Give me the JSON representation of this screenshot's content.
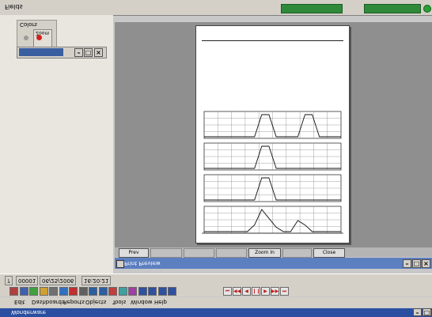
{
  "top_title": "Fields",
  "palette": {
    "title": "Colors",
    "label": "Zoom"
  },
  "mini_window": {
    "title": ""
  },
  "page_buttons": [
    "Prev",
    "",
    "",
    "",
    "Zoom In",
    "",
    "Close"
  ],
  "preview_window": {
    "title": "Print Preview"
  },
  "status": {
    "field1": "00001",
    "field2": "06/25/2006",
    "field3": "16:20:21"
  },
  "toolbar_nav": [
    "⏮",
    "◀◀",
    "◀",
    "❙❙",
    "▶",
    "▶▶",
    "⏭"
  ],
  "menu": [
    "Edit",
    "Dashboards",
    "Reports",
    "Objects",
    "Tools",
    "Window",
    "Help"
  ],
  "app_title": "Wonderware",
  "chart_data": {
    "type": "line",
    "series": [
      {
        "values": [
          0,
          0,
          0,
          0,
          0,
          0,
          0,
          0,
          1,
          1,
          0,
          0,
          0,
          0,
          1,
          1,
          0,
          0,
          0,
          0
        ]
      },
      {
        "values": [
          0,
          0,
          0,
          0,
          0,
          0,
          0,
          0,
          1,
          1,
          0,
          0,
          0,
          0,
          0,
          0,
          0,
          0,
          0,
          0
        ]
      },
      {
        "values": [
          0,
          0,
          0,
          0,
          0,
          0,
          0,
          0,
          1,
          1,
          0,
          0,
          0,
          0,
          0,
          0,
          0,
          0,
          0,
          0
        ]
      },
      {
        "values": [
          0,
          0,
          0,
          0,
          0,
          0,
          0,
          0.3,
          1,
          0.6,
          0.2,
          0,
          0,
          0.5,
          0.3,
          0,
          0,
          0,
          0,
          0
        ]
      }
    ]
  }
}
